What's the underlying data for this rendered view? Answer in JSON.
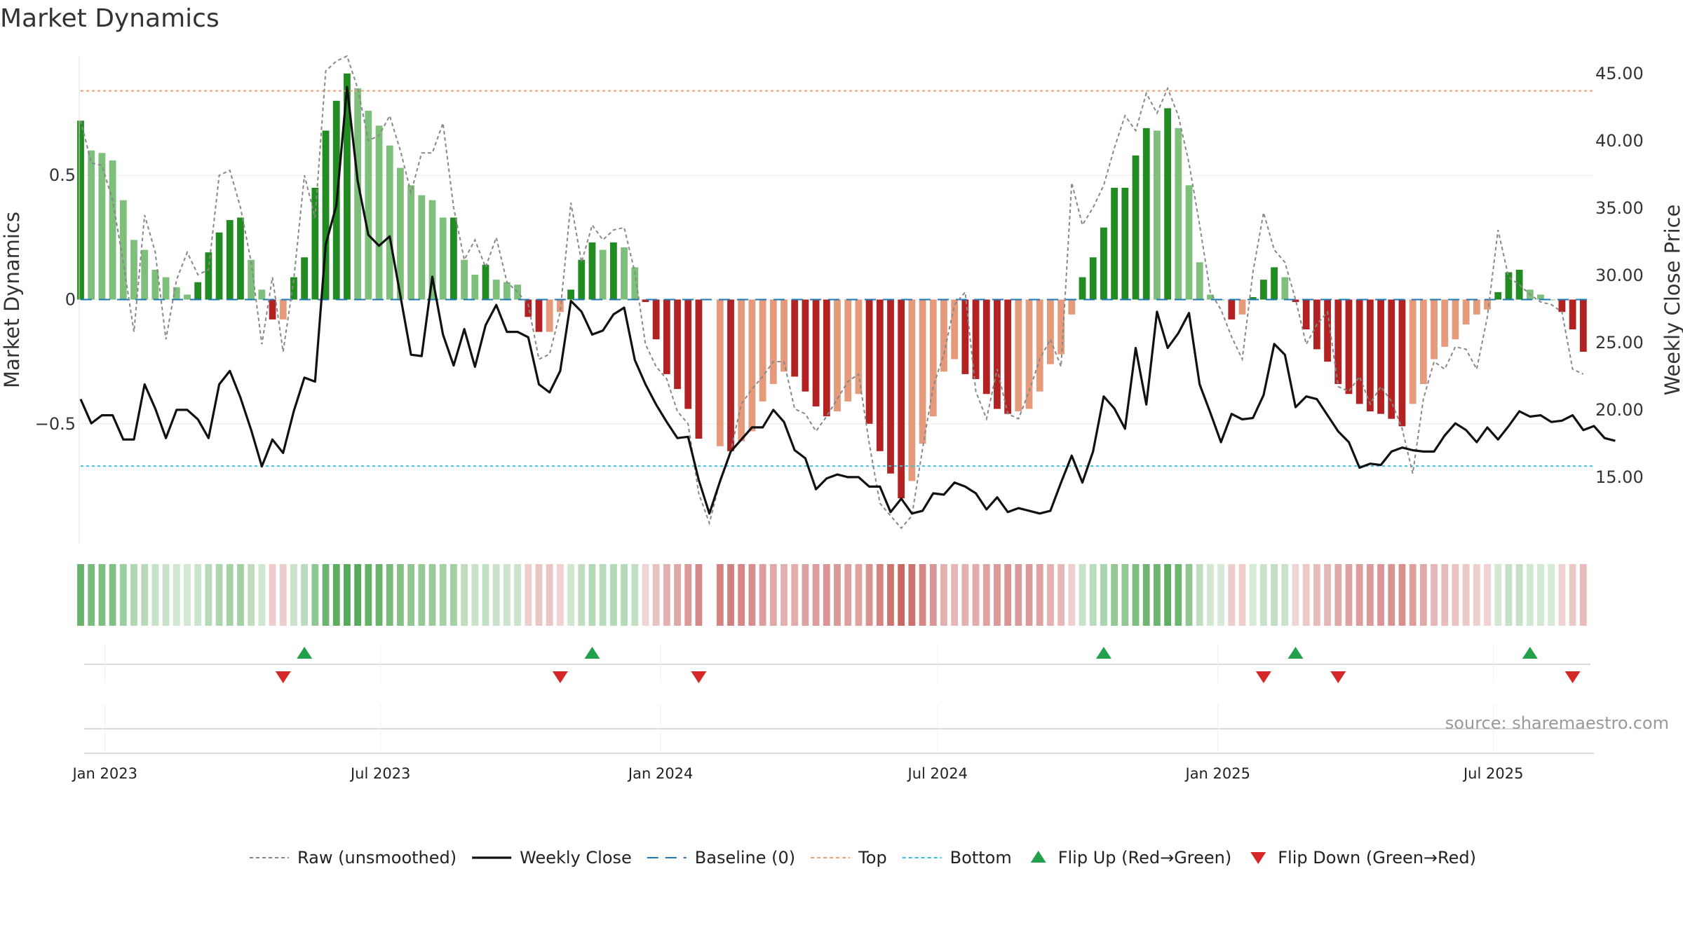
{
  "chart_data": {
    "type": "bar",
    "title": "Market Dynamics",
    "ylabel_left": "Market Dynamics",
    "ylabel_right": "Weekly Close Price",
    "left_axis": {
      "ylim": [
        -0.98,
        0.98
      ],
      "ticks": [
        0.5,
        0,
        -0.5
      ],
      "tick_labels": [
        "0.5",
        "0",
        "−0.5"
      ]
    },
    "right_axis": {
      "ylim": [
        10.1,
        46.3
      ],
      "ticks": [
        45,
        40,
        35,
        30,
        25,
        20,
        15
      ],
      "tick_labels": [
        "45.00",
        "40.00",
        "35.00",
        "30.00",
        "25.00",
        "20.00",
        "15.00"
      ]
    },
    "x_axis": {
      "start": "2022-12-16",
      "end": "2025-09-05",
      "ticks": [
        "2023-01-01",
        "2023-07-01",
        "2024-01-01",
        "2024-07-01",
        "2025-01-01",
        "2025-07-01"
      ],
      "tick_labels": [
        "Jan 2023",
        "Jul 2023",
        "Jan 2024",
        "Jul 2024",
        "Jan 2025",
        "Jul 2025"
      ]
    },
    "reference_lines": {
      "baseline": 0,
      "top": 0.84,
      "bottom": -0.67
    },
    "grid": true,
    "legend_position": "bottom",
    "colors": {
      "strong_green": "#228b22",
      "light_green": "#7dbf7b",
      "strong_red": "#b22222",
      "light_red": "#e59a7c",
      "weekly_close": "#111111",
      "raw": "#888888",
      "baseline": "#1f77b4",
      "top": "#f0a070",
      "bottom": "#35c2e0",
      "flip_up": "#22a04b",
      "flip_down": "#d62728"
    },
    "start_date": "2022-12-16",
    "week_step_days": 7,
    "bars": [
      0.72,
      0.6,
      0.59,
      0.56,
      0.4,
      0.24,
      0.2,
      0.12,
      0.09,
      0.05,
      0.02,
      0.07,
      0.19,
      0.27,
      0.32,
      0.33,
      0.16,
      0.04,
      -0.08,
      -0.08,
      0.09,
      0.17,
      0.45,
      0.68,
      0.8,
      0.91,
      0.85,
      0.76,
      0.7,
      0.62,
      0.53,
      0.46,
      0.42,
      0.4,
      0.33,
      0.33,
      0.16,
      0.1,
      0.14,
      0.08,
      0.07,
      0.06,
      -0.07,
      -0.13,
      -0.13,
      -0.05,
      0.04,
      0.16,
      0.23,
      0.2,
      0.23,
      0.21,
      0.13,
      -0.01,
      -0.16,
      -0.3,
      -0.36,
      -0.44,
      -0.56,
      null,
      -0.59,
      -0.61,
      -0.57,
      -0.53,
      -0.41,
      -0.34,
      -0.29,
      -0.31,
      -0.37,
      -0.43,
      -0.47,
      -0.45,
      -0.41,
      -0.38,
      -0.5,
      -0.61,
      -0.7,
      -0.8,
      -0.73,
      -0.58,
      -0.47,
      -0.29,
      -0.24,
      -0.3,
      -0.32,
      -0.38,
      -0.44,
      -0.46,
      -0.45,
      -0.44,
      -0.37,
      -0.26,
      -0.22,
      -0.06,
      0.09,
      0.17,
      0.29,
      0.45,
      0.45,
      0.58,
      0.69,
      0.68,
      0.77,
      0.69,
      0.46,
      0.15,
      0.02,
      0,
      -0.08,
      -0.06,
      0.01,
      0.08,
      0.13,
      0.09,
      -0.01,
      -0.12,
      -0.2,
      -0.25,
      -0.34,
      -0.38,
      -0.42,
      -0.45,
      -0.46,
      -0.48,
      -0.51,
      -0.42,
      -0.34,
      -0.24,
      -0.19,
      -0.16,
      -0.1,
      -0.06,
      -0.04,
      0.03,
      0.11,
      0.12,
      0.04,
      0.02,
      0,
      -0.05,
      -0.12,
      -0.21
    ],
    "raw": [
      0.72,
      0.55,
      0.54,
      0.4,
      0.15,
      -0.13,
      0.34,
      0.19,
      -0.16,
      0.08,
      0.19,
      0.1,
      0.12,
      0.5,
      0.52,
      0.37,
      0.15,
      -0.18,
      0.09,
      -0.21,
      0.08,
      0.5,
      0.33,
      0.92,
      0.96,
      0.98,
      0.85,
      0.64,
      0.66,
      0.74,
      0.6,
      0.43,
      0.59,
      0.59,
      0.71,
      0.37,
      0.16,
      0.24,
      0.13,
      0.25,
      0.07,
      0.03,
      -0.02,
      -0.24,
      -0.22,
      -0.05,
      0.39,
      0.15,
      0.3,
      0.24,
      0.28,
      0.29,
      0.11,
      -0.18,
      -0.27,
      -0.32,
      -0.45,
      -0.5,
      -0.78,
      -0.9,
      -0.73,
      -0.61,
      -0.42,
      -0.36,
      -0.31,
      -0.25,
      -0.25,
      -0.44,
      -0.46,
      -0.53,
      -0.47,
      -0.4,
      -0.33,
      -0.3,
      -0.58,
      -0.82,
      -0.87,
      -0.92,
      -0.87,
      -0.6,
      -0.35,
      -0.22,
      -0.02,
      0.03,
      -0.37,
      -0.48,
      -0.28,
      -0.46,
      -0.48,
      -0.37,
      -0.24,
      -0.16,
      -0.27,
      0.47,
      0.3,
      0.37,
      0.46,
      0.61,
      0.74,
      0.68,
      0.83,
      0.75,
      0.85,
      0.74,
      0.55,
      0.3,
      0.03,
      -0.04,
      -0.15,
      -0.24,
      0.11,
      0.35,
      0.2,
      0.15,
      0,
      -0.18,
      -0.1,
      -0.05,
      -0.35,
      -0.37,
      -0.31,
      -0.42,
      -0.35,
      -0.41,
      -0.52,
      -0.7,
      -0.4,
      -0.25,
      -0.28,
      -0.19,
      -0.2,
      -0.28,
      -0.07,
      0.28,
      0.09,
      0.06,
      0.02,
      -0.01,
      -0.02,
      -0.05,
      -0.28,
      -0.3
    ],
    "weekly_close": [
      20.8,
      19.0,
      19.6,
      19.6,
      17.8,
      17.8,
      21.9,
      20.1,
      17.9,
      20.0,
      20.0,
      19.3,
      17.9,
      21.9,
      22.9,
      20.9,
      18.5,
      15.8,
      17.8,
      16.8,
      19.9,
      22.4,
      22.1,
      32.3,
      35.2,
      44.0,
      37.0,
      33.0,
      32.2,
      32.9,
      28.5,
      24.1,
      24.0,
      29.9,
      25.6,
      23.3,
      26.0,
      23.2,
      26.3,
      27.8,
      25.8,
      25.8,
      25.4,
      21.9,
      21.3,
      22.9,
      28.1,
      27.3,
      25.6,
      25.9,
      27.1,
      27.6,
      23.7,
      21.9,
      20.4,
      19.1,
      17.9,
      18.0,
      14.8,
      12.3,
      14.7,
      16.9,
      17.8,
      18.7,
      18.7,
      20.0,
      19.1,
      17.0,
      16.4,
      14.1,
      14.9,
      15.2,
      15.0,
      15.0,
      14.3,
      14.3,
      12.4,
      13.4,
      12.3,
      12.5,
      13.8,
      13.7,
      14.6,
      14.3,
      13.8,
      12.6,
      13.5,
      12.4,
      12.7,
      12.5,
      12.3,
      12.5,
      14.6,
      16.6,
      14.6,
      16.9,
      21.0,
      20.1,
      18.6,
      24.6,
      20.4,
      27.3,
      24.6,
      25.7,
      27.2,
      21.9,
      19.8,
      17.6,
      19.7,
      19.3,
      19.4,
      21.1,
      24.9,
      24.1,
      20.2,
      21.0,
      20.8,
      19.6,
      18.4,
      17.6,
      15.7,
      16.0,
      15.9,
      16.9,
      17.2,
      17.0,
      16.9,
      16.9,
      18.1,
      19.0,
      18.5,
      17.6,
      18.7,
      17.8,
      18.8,
      19.9,
      19.5,
      19.6,
      19.1,
      19.2,
      19.6,
      18.5,
      18.8,
      17.9,
      17.7
    ],
    "momentum_band": [
      0.32,
      0.27,
      0.26,
      0.25,
      0.17,
      0.11,
      0.09,
      0.05,
      0.04,
      0.02,
      0.01,
      0.03,
      0.09,
      0.12,
      0.14,
      0.15,
      0.07,
      0.02,
      -0.04,
      -0.04,
      0.04,
      0.08,
      0.21,
      0.31,
      0.36,
      0.41,
      0.38,
      0.34,
      0.32,
      0.28,
      0.24,
      0.21,
      0.19,
      0.18,
      0.15,
      0.15,
      0.07,
      0.04,
      0.06,
      0.04,
      0.03,
      0.03,
      -0.03,
      -0.06,
      -0.06,
      -0.02,
      0.02,
      0.07,
      0.1,
      0.09,
      0.1,
      0.09,
      0.06,
      -0.01,
      -0.07,
      -0.13,
      -0.16,
      -0.2,
      -0.25,
      null,
      -0.27,
      -0.28,
      -0.26,
      -0.24,
      -0.19,
      -0.15,
      -0.13,
      -0.14,
      -0.17,
      -0.19,
      -0.21,
      -0.2,
      -0.18,
      -0.17,
      -0.22,
      -0.27,
      -0.32,
      -0.36,
      -0.33,
      -0.26,
      -0.21,
      -0.13,
      -0.11,
      -0.13,
      -0.14,
      -0.17,
      -0.2,
      -0.21,
      -0.2,
      -0.2,
      -0.17,
      -0.12,
      -0.1,
      -0.03,
      0.04,
      0.08,
      0.13,
      0.2,
      0.2,
      0.26,
      0.31,
      0.31,
      0.35,
      0.31,
      0.21,
      0.07,
      0.01,
      0,
      -0.04,
      -0.03,
      0,
      0.04,
      0.06,
      0.04,
      -0.01,
      -0.05,
      -0.09,
      -0.11,
      -0.15,
      -0.17,
      -0.19,
      -0.2,
      -0.21,
      -0.22,
      -0.23,
      -0.19,
      -0.15,
      -0.11,
      -0.09,
      -0.07,
      -0.05,
      -0.03,
      -0.02,
      0.01,
      0.05,
      0.05,
      0.02,
      0.01,
      0,
      -0.02,
      -0.05,
      -0.09
    ],
    "flip_up_dates": [
      "2023-05-12",
      "2023-11-17",
      "2024-10-18",
      "2025-02-21",
      "2025-07-25"
    ],
    "flip_down_dates": [
      "2023-04-28",
      "2023-10-27",
      "2024-01-26",
      "2025-01-31",
      "2025-03-21",
      "2025-08-22"
    ]
  },
  "legend": [
    {
      "key": "raw",
      "label": "Raw (unsmoothed)",
      "style": "dotted",
      "color": "#888888"
    },
    {
      "key": "weekly_close",
      "label": "Weekly Close",
      "style": "solid",
      "color": "#111111"
    },
    {
      "key": "baseline",
      "label": "Baseline (0)",
      "style": "dashed",
      "color": "#1f77b4"
    },
    {
      "key": "top",
      "label": "Top",
      "style": "dotted",
      "color": "#f0a070"
    },
    {
      "key": "bottom",
      "label": "Bottom",
      "style": "dotted",
      "color": "#35c2e0"
    },
    {
      "key": "flip_up",
      "label": "Flip Up (Red→Green)",
      "style": "triangle-up",
      "color": "#22a04b"
    },
    {
      "key": "flip_down",
      "label": "Flip Down (Green→Red)",
      "style": "triangle-down",
      "color": "#d62728"
    }
  ],
  "source_text": "source: sharemaestro.com"
}
